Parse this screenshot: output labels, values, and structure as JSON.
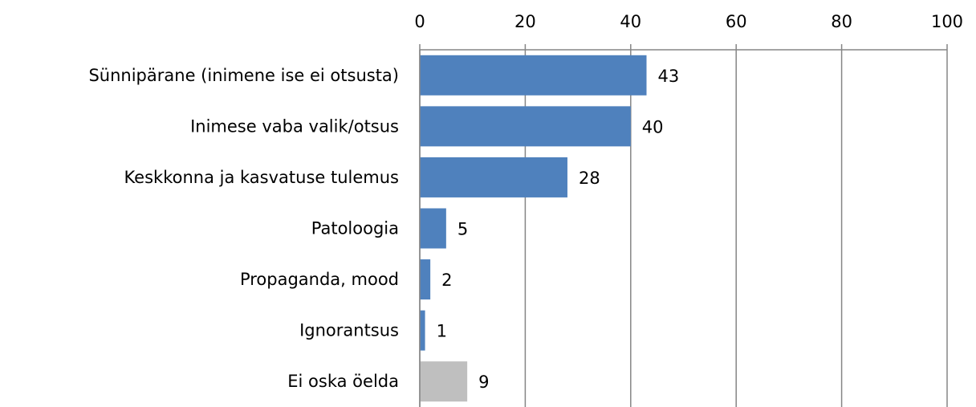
{
  "chart_data": {
    "type": "bar",
    "orientation": "horizontal",
    "categories": [
      "Sünnipärane (inimene ise ei otsusta)",
      "Inimese vaba valik/otsus",
      "Keskkonna ja kasvatuse tulemus",
      "Patoloogia",
      "Propaganda, mood",
      "Ignorantsus",
      "Ei oska öelda"
    ],
    "values": [
      43,
      40,
      28,
      5,
      2,
      1,
      9
    ],
    "colors": [
      "#4f81bd",
      "#4f81bd",
      "#4f81bd",
      "#4f81bd",
      "#4f81bd",
      "#4f81bd",
      "#bfbfbf"
    ],
    "xlim": [
      0,
      100
    ],
    "xticks": [
      0,
      20,
      40,
      60,
      80,
      100
    ],
    "grid": true
  }
}
